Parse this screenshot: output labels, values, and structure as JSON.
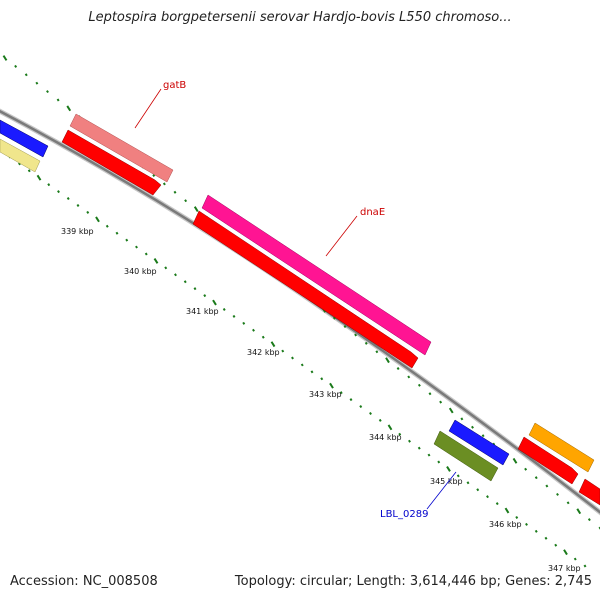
{
  "title": "Leptospira borgpetersenii serovar Hardjo-bovis L550 chromoso...",
  "footer": {
    "accession": "Accession: NC_008508",
    "summary": "Topology: circular; Length: 3,614,446 bp; Genes: 2,745"
  },
  "colors": {
    "backbone": "#888888",
    "tick": "#1a7a1a",
    "label_red": "#cc0000",
    "label_blue": "#0000cc"
  },
  "ticks": [
    {
      "label": "339 kbp"
    },
    {
      "label": "340 kbp"
    },
    {
      "label": "341 kbp"
    },
    {
      "label": "342 kbp"
    },
    {
      "label": "343 kbp"
    },
    {
      "label": "344 kbp"
    },
    {
      "label": "345 kbp"
    },
    {
      "label": "346 kbp"
    },
    {
      "label": "347 kbp"
    }
  ],
  "genes": [
    {
      "name": "gatB",
      "color": "#f08080"
    },
    {
      "name": "dnaE",
      "color": "#ff1493"
    },
    {
      "name": "LBL_0289",
      "color": "#6b8e23"
    }
  ],
  "other_features": [
    {
      "color": "#0000ff"
    },
    {
      "color": "#f0e68c"
    },
    {
      "color": "#ff0000"
    },
    {
      "color": "#ffa500"
    }
  ]
}
